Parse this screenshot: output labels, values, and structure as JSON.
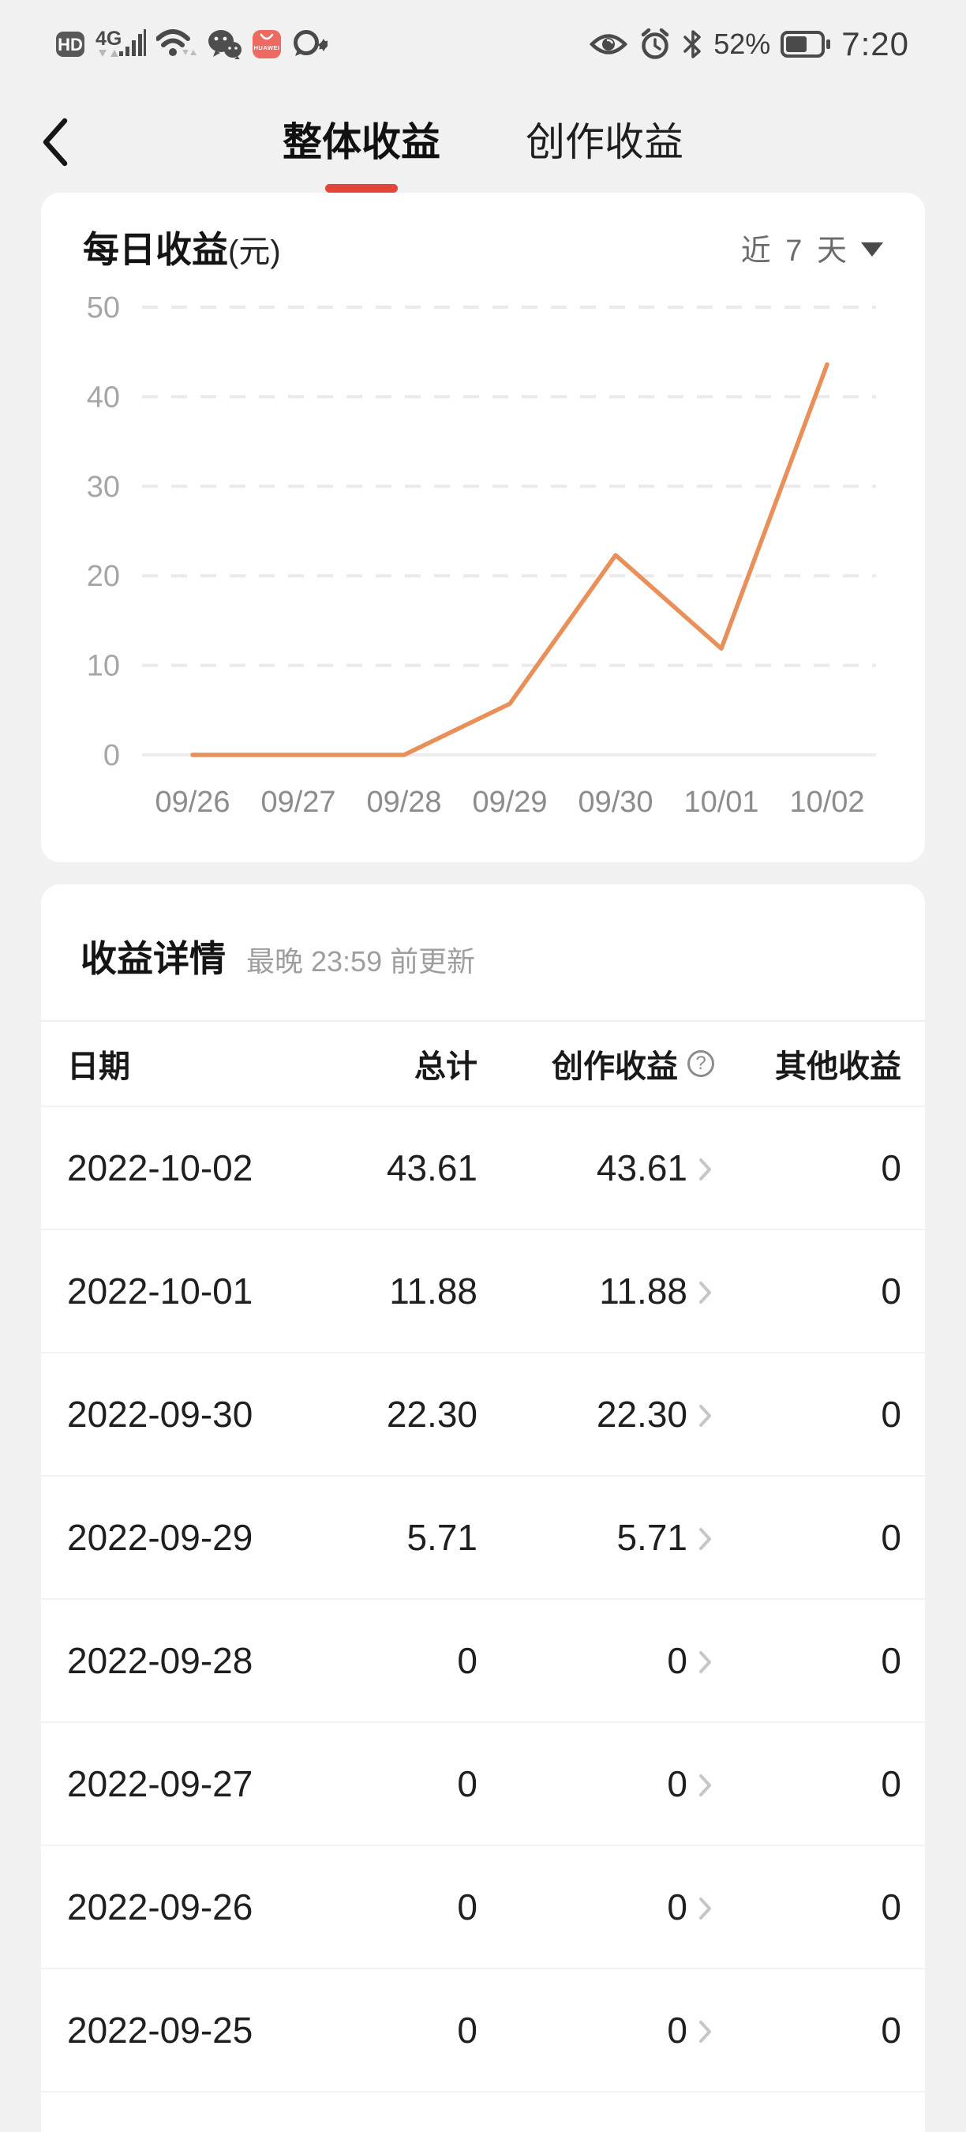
{
  "status_bar": {
    "hd_label": "HD",
    "network_label": "4G",
    "appgallery_label": "HUAWEI",
    "battery_percent": "52%",
    "time": "7:20",
    "left_icons": [
      "hd-badge",
      "4g-signal",
      "wifi",
      "wechat",
      "huawei-appgallery",
      "chat-sparkle"
    ],
    "right_icons": [
      "eye-protection",
      "alarm-clock",
      "bluetooth",
      "battery"
    ]
  },
  "nav": {
    "tabs": [
      {
        "label": "整体收益",
        "active": true
      },
      {
        "label": "创作收益",
        "active": false
      }
    ],
    "accent_color": "#e2453c"
  },
  "chart_card": {
    "title": "每日收益",
    "unit": "(元)",
    "range_selector": "近 7 天"
  },
  "chart_data": {
    "type": "line",
    "title": "每日收益(元)",
    "categories": [
      "09/26",
      "09/27",
      "09/28",
      "09/29",
      "09/30",
      "10/01",
      "10/02"
    ],
    "values": [
      0,
      0,
      0,
      5.71,
      22.3,
      11.88,
      43.61
    ],
    "y_ticks": [
      0,
      10,
      20,
      30,
      40,
      50
    ],
    "ylim": [
      0,
      50
    ],
    "xlabel": "",
    "ylabel": "元",
    "legend": "none",
    "grid": "horizontal-dashed",
    "line_color": "#e9905a",
    "tick_label_color": "#a6a6a6",
    "x_label_color": "#8c8c8c"
  },
  "details": {
    "title": "收益详情",
    "update_note": "最晚 23:59 前更新",
    "columns": [
      "日期",
      "总计",
      "创作收益",
      "其他收益"
    ],
    "help_icon": "?",
    "rows": [
      {
        "date": "2022-10-02",
        "total": "43.61",
        "creation": "43.61",
        "other": "0"
      },
      {
        "date": "2022-10-01",
        "total": "11.88",
        "creation": "11.88",
        "other": "0"
      },
      {
        "date": "2022-09-30",
        "total": "22.30",
        "creation": "22.30",
        "other": "0"
      },
      {
        "date": "2022-09-29",
        "total": "5.71",
        "creation": "5.71",
        "other": "0"
      },
      {
        "date": "2022-09-28",
        "total": "0",
        "creation": "0",
        "other": "0"
      },
      {
        "date": "2022-09-27",
        "total": "0",
        "creation": "0",
        "other": "0"
      },
      {
        "date": "2022-09-26",
        "total": "0",
        "creation": "0",
        "other": "0"
      },
      {
        "date": "2022-09-25",
        "total": "0",
        "creation": "0",
        "other": "0"
      }
    ]
  }
}
